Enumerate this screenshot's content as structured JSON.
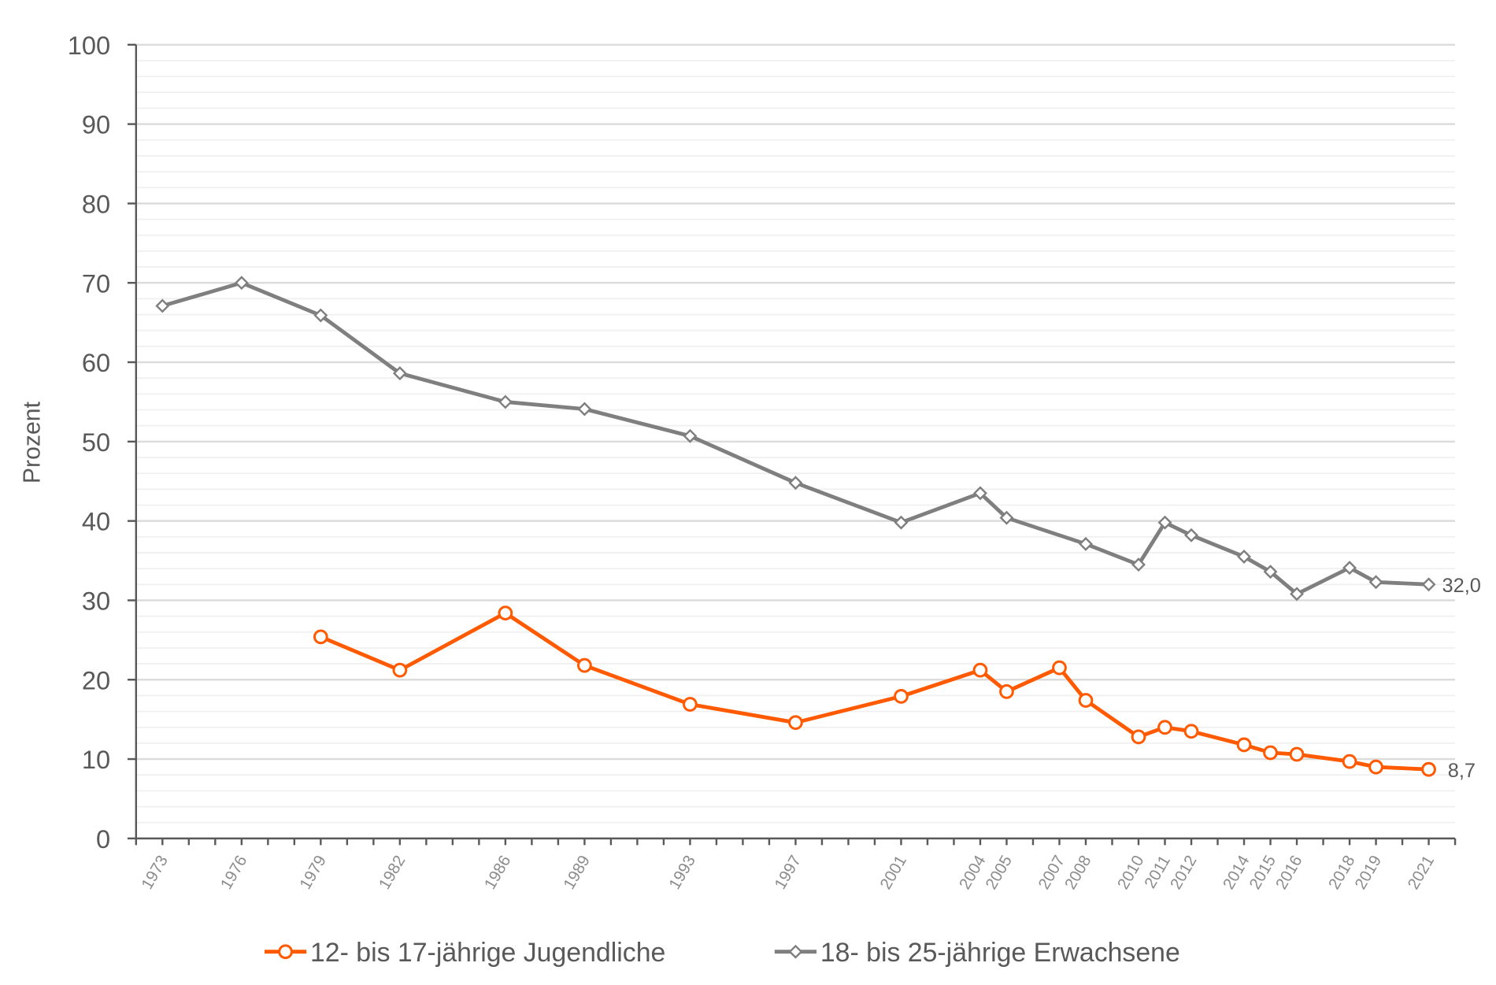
{
  "chart_data": {
    "type": "line",
    "title": "",
    "xlabel": "",
    "ylabel": "Prozent",
    "ylim": [
      0,
      100
    ],
    "xlim": [
      1972,
      2022
    ],
    "yticks": [
      "0",
      "10",
      "20",
      "30",
      "40",
      "50",
      "60",
      "70",
      "80",
      "90",
      "100"
    ],
    "xticks": [
      "1973",
      "1976",
      "1979",
      "1982",
      "1986",
      "1989",
      "1993",
      "1997",
      "2001",
      "2004",
      "2005",
      "2007",
      "2008",
      "2010",
      "2011",
      "2012",
      "2014",
      "2015",
      "2016",
      "2018",
      "2019",
      "2021"
    ],
    "grid": true,
    "legend_position": "bottom",
    "series": [
      {
        "name": "12- bis 17-jährige Jugendliche",
        "color": "#ff5a00",
        "x": [
          1979,
          1982,
          1986,
          1989,
          1993,
          1997,
          2001,
          2004,
          2005,
          2007,
          2008,
          2010,
          2011,
          2012,
          2014,
          2015,
          2016,
          2018,
          2019,
          2021
        ],
        "values": [
          25.4,
          21.2,
          28.4,
          21.8,
          16.9,
          14.6,
          17.9,
          21.2,
          18.5,
          21.5,
          17.4,
          12.8,
          14.0,
          13.5,
          11.8,
          10.8,
          10.6,
          9.7,
          9.0,
          8.7
        ],
        "end_label": "8,7"
      },
      {
        "name": "18- bis 25-jährige Erwachsene",
        "color": "#7f7f7f",
        "x": [
          1973,
          1976,
          1979,
          1982,
          1986,
          1989,
          1993,
          1997,
          2001,
          2004,
          2005,
          2008,
          2010,
          2011,
          2012,
          2014,
          2015,
          2016,
          2018,
          2019,
          2021
        ],
        "values": [
          67.1,
          70.0,
          65.9,
          58.6,
          55.0,
          54.1,
          50.7,
          44.8,
          39.8,
          43.5,
          40.4,
          37.1,
          34.5,
          39.8,
          38.2,
          35.5,
          33.6,
          30.8,
          34.1,
          32.3,
          32.0
        ],
        "end_label": "32,0"
      }
    ]
  }
}
